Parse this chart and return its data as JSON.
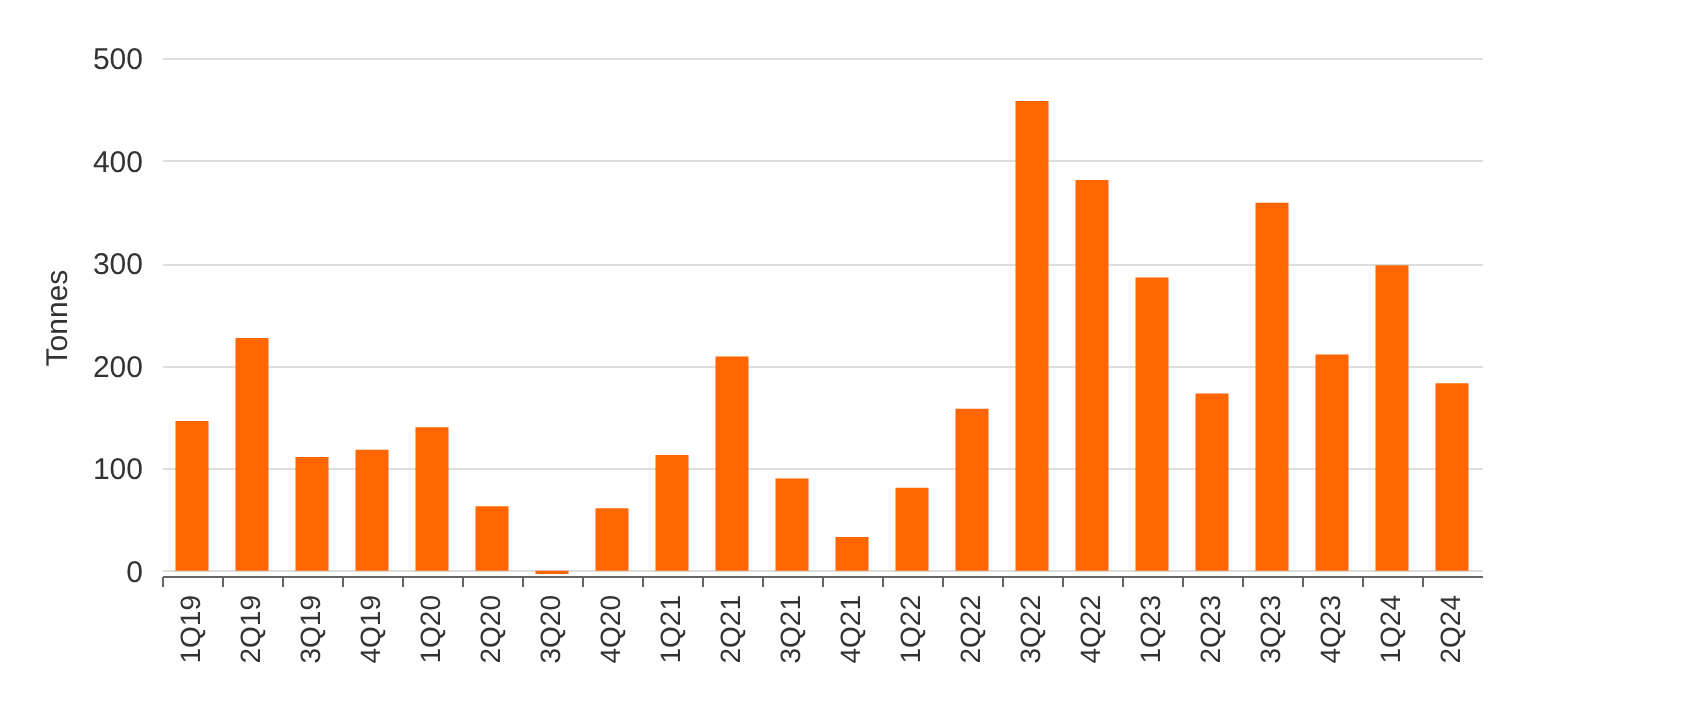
{
  "chart_data": {
    "type": "bar",
    "ylabel": "Tonnes",
    "categories": [
      "1Q19",
      "2Q19",
      "3Q19",
      "4Q19",
      "1Q20",
      "2Q20",
      "3Q20",
      "4Q20",
      "1Q21",
      "2Q21",
      "3Q21",
      "4Q21",
      "1Q22",
      "2Q22",
      "3Q22",
      "4Q22",
      "1Q23",
      "2Q23",
      "3Q23",
      "4Q23",
      "1Q24",
      "2Q24"
    ],
    "values": [
      146,
      227,
      111,
      118,
      140,
      63,
      -3,
      61,
      113,
      209,
      90,
      33,
      81,
      158,
      458,
      381,
      286,
      173,
      359,
      211,
      298,
      183
    ],
    "color": "#ff6600",
    "ylim": [
      -5,
      500
    ],
    "yticks": [
      0,
      100,
      200,
      300,
      400,
      500
    ],
    "grid": "y"
  }
}
